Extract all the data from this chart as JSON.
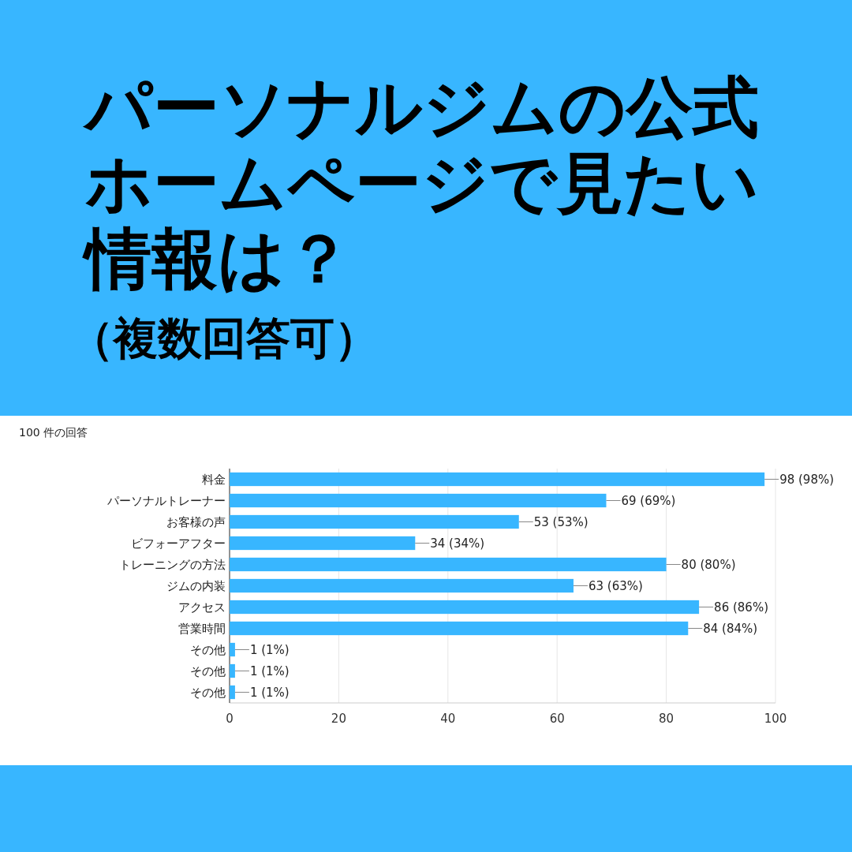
{
  "chart_data": {
    "type": "bar",
    "orientation": "horizontal",
    "title": "パーソナルジムの公式ホームページで見たい情報は？",
    "subtitle": "（複数回答可）",
    "annotations": [
      "100 件の回答"
    ],
    "categories": [
      "料金",
      "パーソナルトレーナー",
      "お客様の声",
      "ビフォーアフター",
      "トレーニングの方法",
      "ジムの内装",
      "アクセス",
      "営業時間",
      "その他",
      "その他",
      "その他"
    ],
    "values": [
      98,
      69,
      53,
      34,
      80,
      63,
      86,
      84,
      1,
      1,
      1
    ],
    "value_labels": [
      "98 (98%)",
      "69 (69%)",
      "53 (53%)",
      "34 (34%)",
      "80 (80%)",
      "63 (63%)",
      "86 (86%)",
      "84 (84%)",
      "1 (1%)",
      "1 (1%)",
      "1 (1%)"
    ],
    "color": "#38b6ff",
    "xlim": [
      0,
      100
    ],
    "xticks": [
      0,
      20,
      40,
      60,
      80,
      100
    ],
    "grid": "x"
  }
}
